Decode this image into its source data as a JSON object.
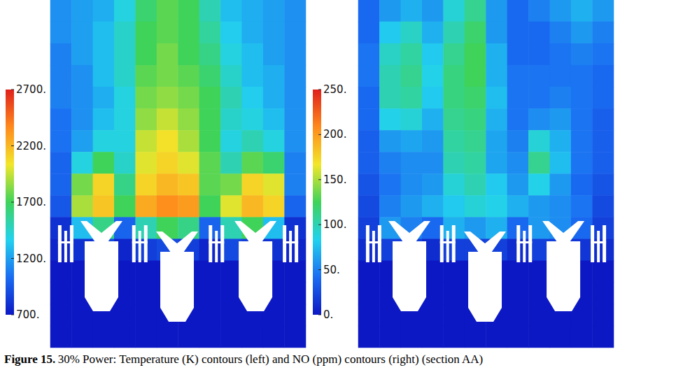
{
  "chart_data": [
    {
      "type": "heatmap",
      "tick_labels": false,
      "colorbar": {
        "range": [
          700,
          2700
        ],
        "ticks": [
          {
            "value": 2700,
            "label": "2700."
          },
          {
            "value": 2200,
            "label": "2200."
          },
          {
            "value": 1700,
            "label": "1700."
          },
          {
            "value": 1200,
            "label": "1200."
          },
          {
            "value": 700,
            "label": "700."
          }
        ]
      },
      "cells": [
        [
          1150,
          1200,
          1250,
          1400,
          1650,
          1750,
          1700,
          1500,
          1300,
          1250,
          1200,
          1150
        ],
        [
          1150,
          1200,
          1300,
          1450,
          1700,
          1750,
          1700,
          1550,
          1350,
          1250,
          1200,
          1150
        ],
        [
          1100,
          1200,
          1300,
          1450,
          1700,
          1800,
          1700,
          1600,
          1400,
          1300,
          1200,
          1150
        ],
        [
          1100,
          1150,
          1300,
          1450,
          1750,
          1800,
          1750,
          1650,
          1450,
          1300,
          1250,
          1150
        ],
        [
          1100,
          1150,
          1250,
          1400,
          1800,
          1850,
          1800,
          1700,
          1500,
          1350,
          1250,
          1150
        ],
        [
          1050,
          1150,
          1300,
          1400,
          1850,
          1950,
          1850,
          1700,
          1450,
          1400,
          1300,
          1150
        ],
        [
          1050,
          1200,
          1400,
          1400,
          1950,
          2050,
          1900,
          1700,
          1400,
          1500,
          1400,
          1150
        ],
        [
          1000,
          1400,
          1700,
          1450,
          2000,
          2100,
          2000,
          1750,
          1500,
          1750,
          1650,
          1100
        ],
        [
          1000,
          1800,
          2100,
          1600,
          2100,
          2200,
          2150,
          1750,
          1800,
          2100,
          2000,
          1100
        ],
        [
          950,
          1900,
          2150,
          1700,
          2250,
          2350,
          2300,
          1700,
          2000,
          2200,
          2100,
          1000
        ],
        [
          800,
          1300,
          1600,
          1000,
          1500,
          1700,
          1600,
          1000,
          1500,
          1700,
          1300,
          800
        ],
        [
          750,
          800,
          900,
          750,
          850,
          900,
          850,
          750,
          900,
          850,
          800,
          750
        ],
        [
          700,
          700,
          700,
          700,
          700,
          700,
          700,
          700,
          700,
          700,
          700,
          700
        ],
        [
          700,
          700,
          700,
          700,
          700,
          700,
          700,
          700,
          700,
          700,
          700,
          700
        ],
        [
          700,
          700,
          700,
          700,
          700,
          700,
          700,
          700,
          700,
          700,
          700,
          700
        ],
        [
          700,
          700,
          700,
          700,
          700,
          700,
          700,
          700,
          700,
          700,
          700,
          700
        ]
      ]
    },
    {
      "type": "heatmap",
      "tick_labels": false,
      "colorbar": {
        "range": [
          0,
          250
        ],
        "ticks": [
          {
            "value": 250,
            "label": "250."
          },
          {
            "value": 200,
            "label": "200."
          },
          {
            "value": 150,
            "label": "150."
          },
          {
            "value": 100,
            "label": "100."
          },
          {
            "value": 50,
            "label": "50."
          },
          {
            "value": 0,
            "label": "0."
          }
        ]
      },
      "cells": [
        [
          40,
          60,
          70,
          60,
          90,
          110,
          60,
          40,
          50,
          60,
          70,
          60
        ],
        [
          40,
          80,
          95,
          70,
          100,
          120,
          60,
          40,
          40,
          50,
          60,
          50
        ],
        [
          45,
          95,
          105,
          80,
          110,
          125,
          70,
          40,
          40,
          45,
          50,
          45
        ],
        [
          45,
          100,
          110,
          85,
          115,
          125,
          70,
          45,
          45,
          45,
          45,
          40
        ],
        [
          40,
          100,
          105,
          80,
          115,
          120,
          75,
          45,
          45,
          50,
          45,
          40
        ],
        [
          40,
          85,
          90,
          70,
          110,
          115,
          70,
          45,
          55,
          60,
          45,
          35
        ],
        [
          35,
          60,
          65,
          60,
          105,
          110,
          65,
          50,
          90,
          70,
          45,
          35
        ],
        [
          35,
          50,
          55,
          55,
          100,
          105,
          65,
          55,
          110,
          75,
          45,
          35
        ],
        [
          30,
          45,
          55,
          60,
          90,
          100,
          80,
          60,
          85,
          60,
          40,
          30
        ],
        [
          25,
          50,
          60,
          70,
          80,
          90,
          85,
          70,
          60,
          55,
          45,
          25
        ],
        [
          20,
          60,
          50,
          40,
          70,
          60,
          70,
          40,
          60,
          55,
          40,
          20
        ],
        [
          10,
          20,
          20,
          10,
          20,
          20,
          20,
          10,
          20,
          20,
          15,
          10
        ],
        [
          0,
          0,
          0,
          0,
          0,
          0,
          0,
          0,
          0,
          0,
          0,
          0
        ],
        [
          0,
          0,
          0,
          0,
          0,
          0,
          0,
          0,
          0,
          0,
          0,
          0
        ],
        [
          0,
          0,
          0,
          0,
          0,
          0,
          0,
          0,
          0,
          0,
          0,
          0
        ],
        [
          0,
          0,
          0,
          0,
          0,
          0,
          0,
          0,
          0,
          0,
          0,
          0
        ]
      ]
    }
  ],
  "caption": {
    "label": "Figure 15.",
    "text": "30% Power: Temperature (K) contours (left) and NO (ppm) contours (right) (section AA)"
  }
}
